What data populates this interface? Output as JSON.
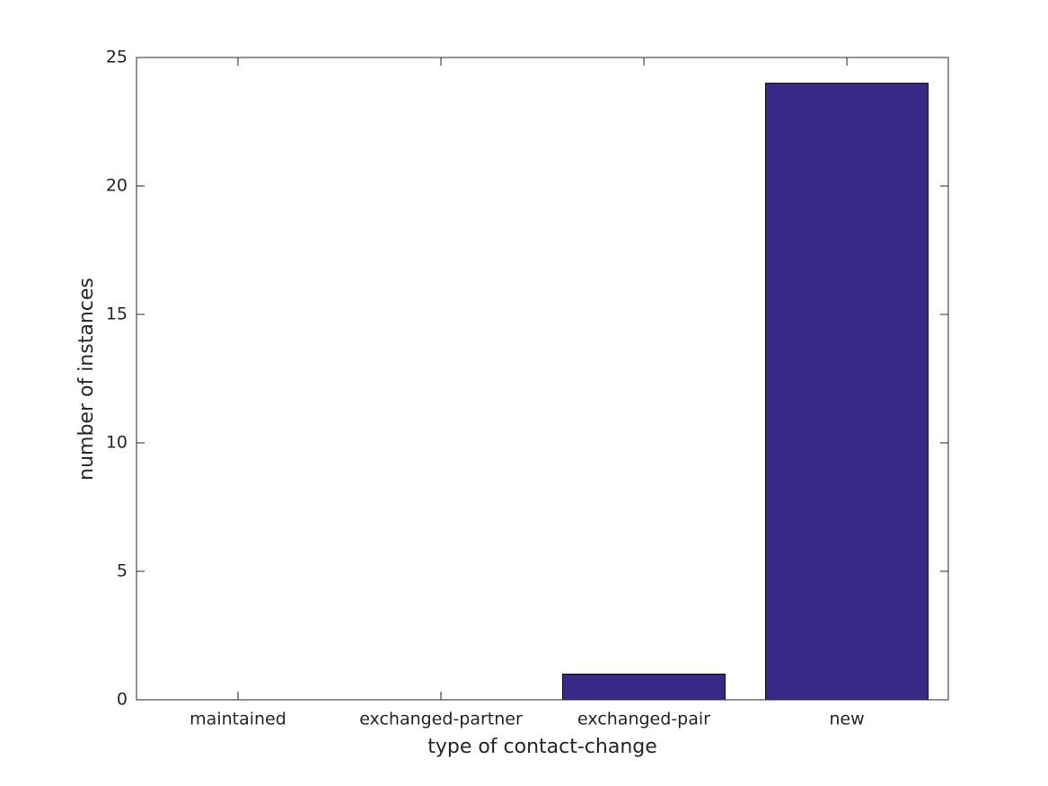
{
  "chart_data": {
    "type": "bar",
    "x_label": "type of contact-change",
    "y_label": "number of instances",
    "categories": [
      "maintained",
      "exchanged-partner",
      "exchanged-pair",
      "new"
    ],
    "values": [
      0,
      0,
      1,
      24
    ],
    "color": "#372a87",
    "ylim": [
      0,
      25
    ],
    "yticks": [
      0,
      5,
      10,
      15,
      20,
      25
    ],
    "grid": false
  }
}
